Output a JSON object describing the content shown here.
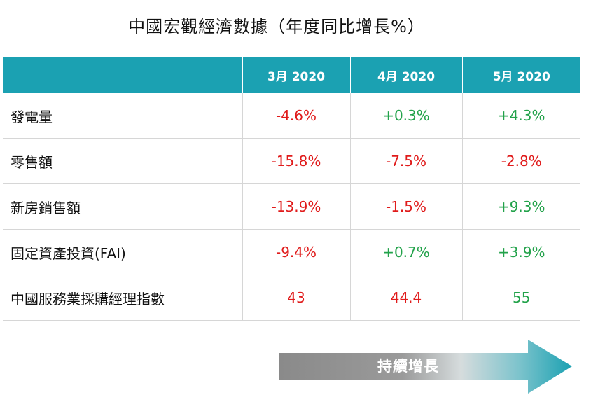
{
  "title": "中國宏觀經濟數據（年度同比增長%）",
  "table": {
    "headers": [
      "",
      "3月 2020",
      "4月 2020",
      "5月 2020"
    ],
    "rows": [
      {
        "label": "發電量",
        "values": [
          "-4.6%",
          "+0.3%",
          "+4.3%"
        ],
        "signs": [
          "neg",
          "pos",
          "pos"
        ]
      },
      {
        "label": "零售額",
        "values": [
          "-15.8%",
          "-7.5%",
          "-2.8%"
        ],
        "signs": [
          "neg",
          "neg",
          "neg"
        ]
      },
      {
        "label": "新房銷售額",
        "values": [
          "-13.9%",
          "-1.5%",
          "+9.3%"
        ],
        "signs": [
          "neg",
          "neg",
          "pos"
        ]
      },
      {
        "label": "固定資產投資(FAI)",
        "values": [
          "-9.4%",
          "+0.7%",
          "+3.9%"
        ],
        "signs": [
          "neg",
          "pos",
          "pos"
        ]
      },
      {
        "label": "中國服務業採購經理指數",
        "values": [
          "43",
          "44.4",
          "55"
        ],
        "signs": [
          "neg",
          "neg",
          "pos"
        ]
      }
    ]
  },
  "arrow": {
    "label": "持續增長"
  },
  "colors": {
    "header_bg": "#1ba1b2",
    "negative": "#e01b1b",
    "positive": "#22a24a",
    "arrow_start": "#8a8a8a",
    "arrow_end": "#1ba1b2"
  },
  "chart_data": {
    "type": "table",
    "title": "中國宏觀經濟數據（年度同比增長%）",
    "columns": [
      "3月 2020",
      "4月 2020",
      "5月 2020"
    ],
    "rows": [
      {
        "name": "發電量",
        "values": [
          "-4.6%",
          "+0.3%",
          "+4.3%"
        ]
      },
      {
        "name": "零售額",
        "values": [
          "-15.8%",
          "-7.5%",
          "-2.8%"
        ]
      },
      {
        "name": "新房銷售額",
        "values": [
          "-13.9%",
          "-1.5%",
          "+9.3%"
        ]
      },
      {
        "name": "固定資產投資(FAI)",
        "values": [
          "-9.4%",
          "+0.7%",
          "+3.9%"
        ]
      },
      {
        "name": "中國服務業採購經理指數",
        "values": [
          "43",
          "44.4",
          "55"
        ]
      }
    ]
  }
}
